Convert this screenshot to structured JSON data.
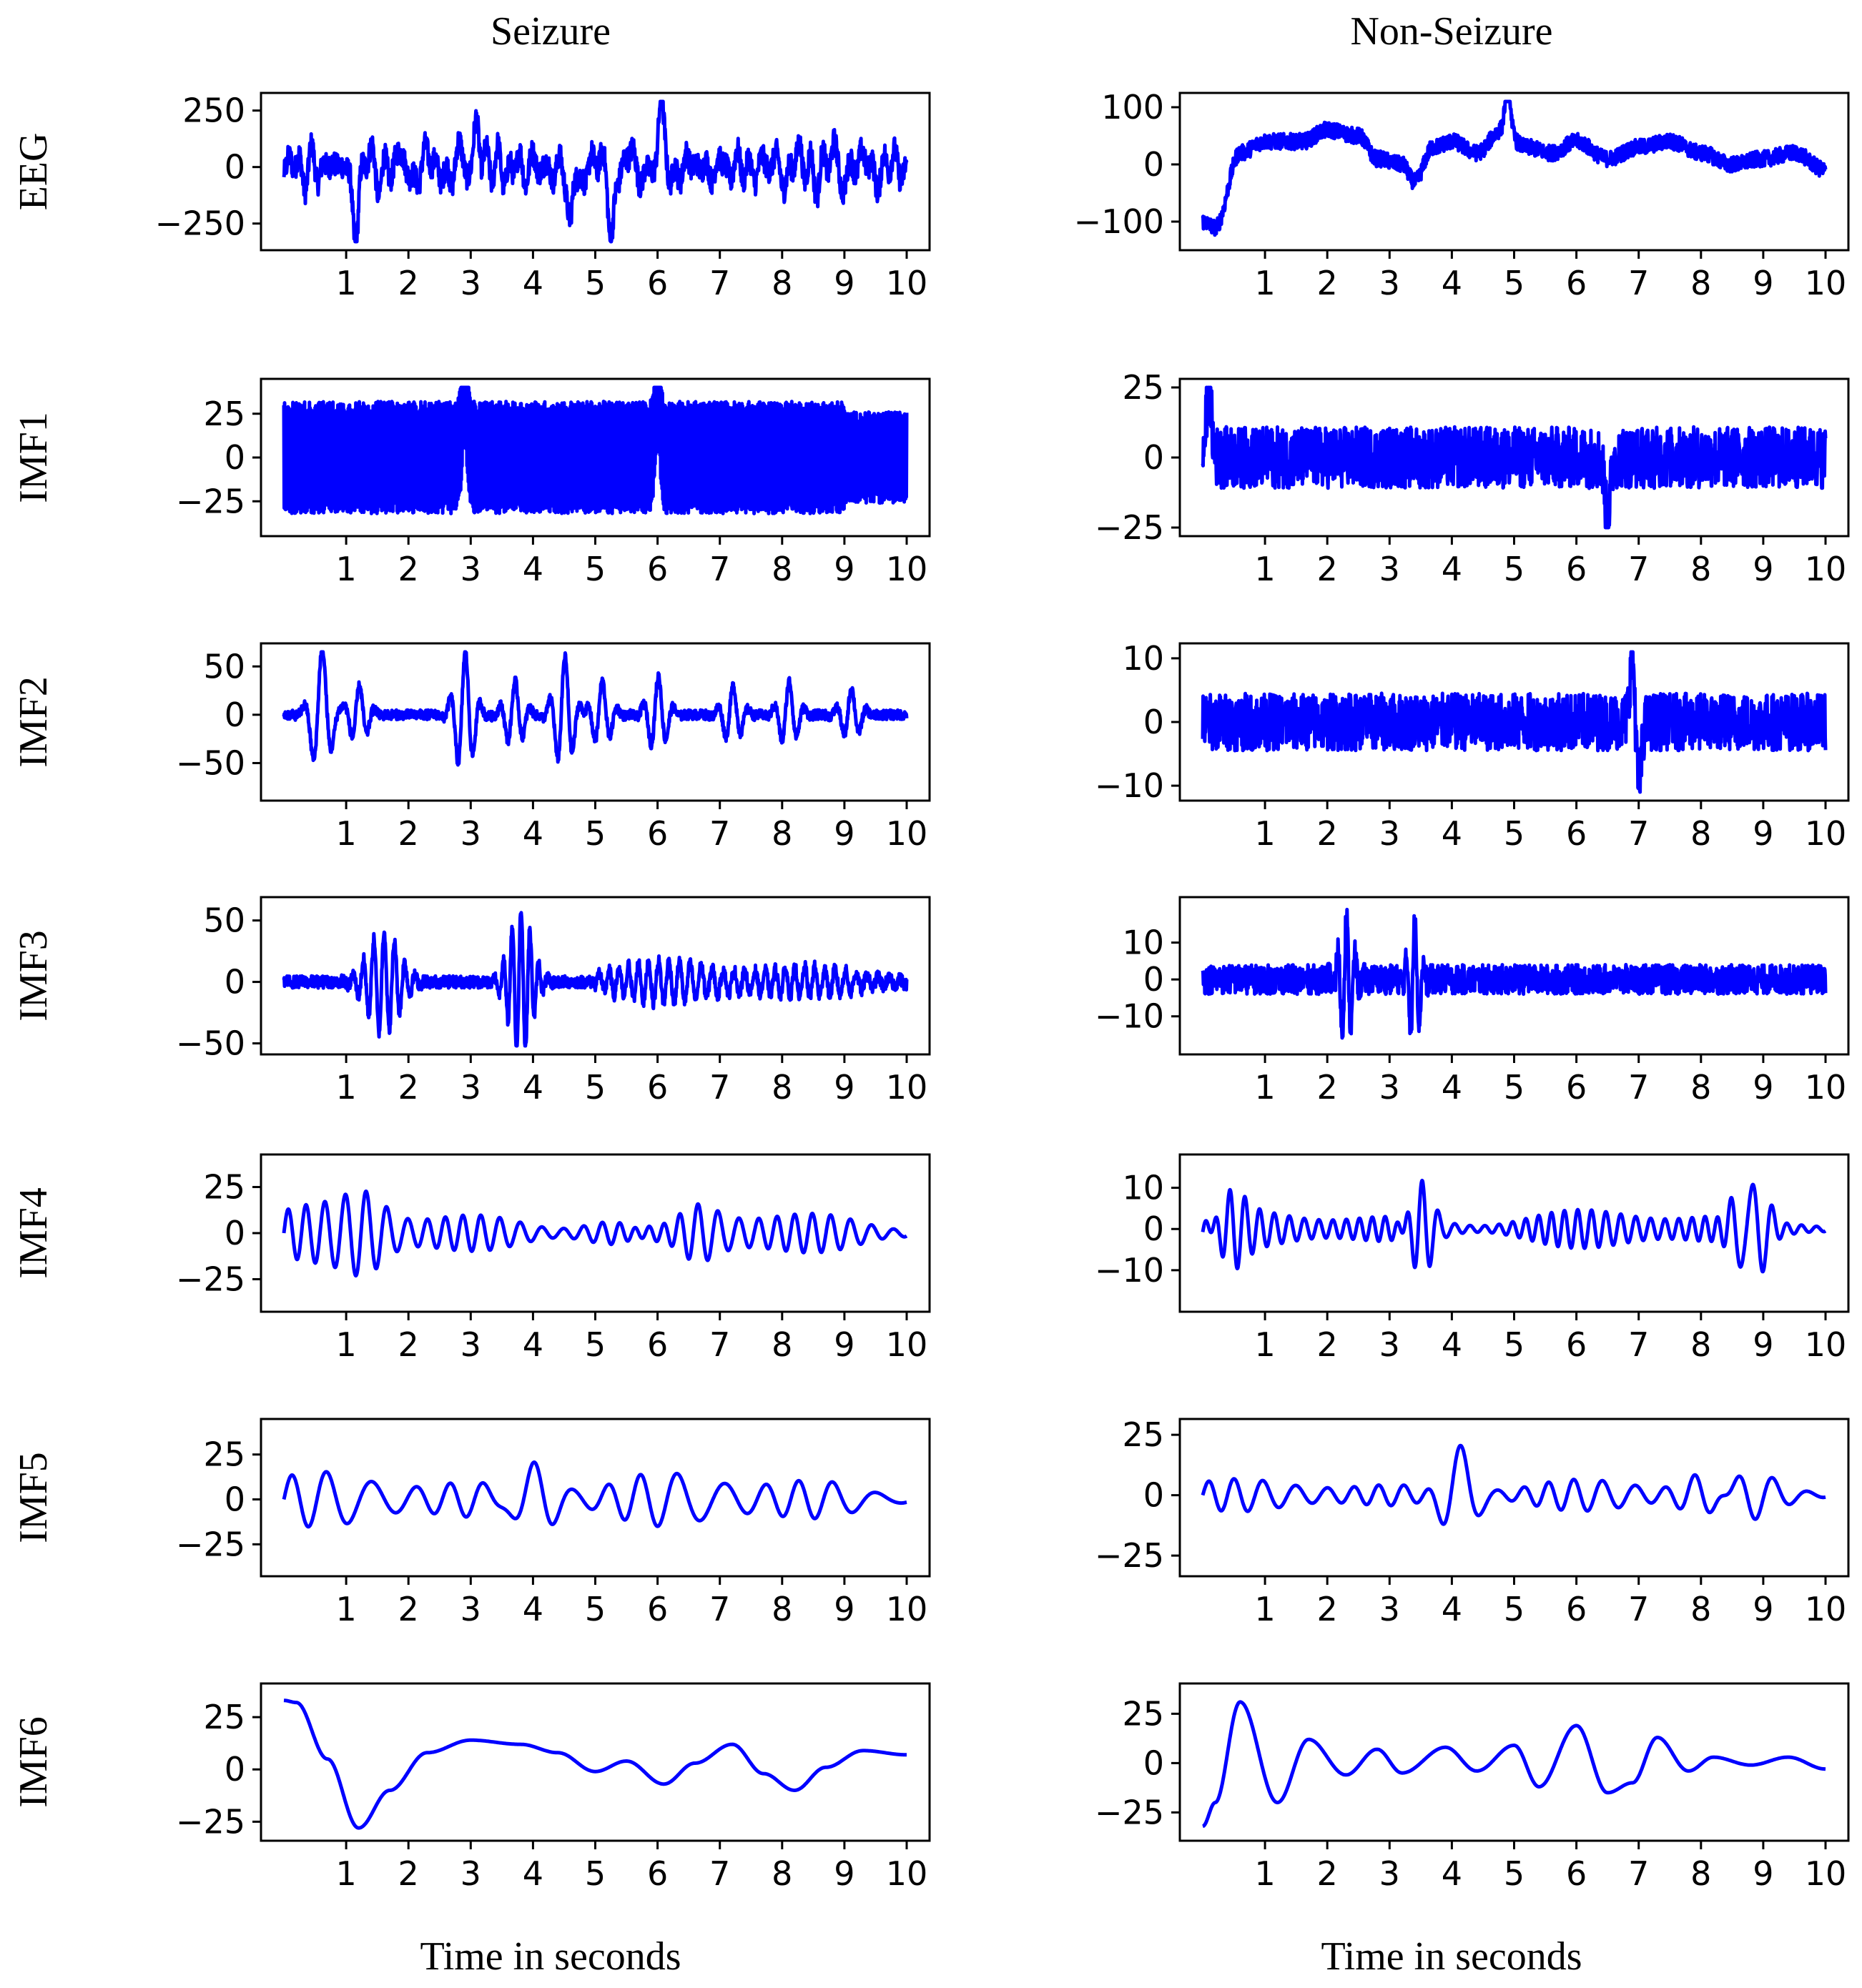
{
  "columns": [
    {
      "id": "seizure",
      "title": "Seizure"
    },
    {
      "id": "nonseizure",
      "title": "Non-Seizure"
    }
  ],
  "row_labels": [
    "EEG",
    "IMF1",
    "IMF2",
    "IMF3",
    "IMF4",
    "IMF5",
    "IMF6"
  ],
  "xlabel": "Time in seconds",
  "colors": {
    "trace": "#0000ff"
  },
  "chart_data": [
    {
      "type": "line",
      "column": "seizure",
      "row": "EEG",
      "x_ticks": [
        1,
        2,
        3,
        4,
        5,
        6,
        7,
        8,
        9,
        10
      ],
      "y_ticks": [
        -250,
        0,
        250
      ],
      "ylim": [
        -330,
        290
      ],
      "series": [
        {
          "values": {
            "kind": "signal",
            "t_end": 10,
            "features": [
              {
                "type": "wideband",
                "amp": 100,
                "freq_range": [
                  1,
                  6
                ]
              },
              {
                "type": "noise",
                "amp": 55
              },
              {
                "type": "spike",
                "t": 1.15,
                "amp": -320
              },
              {
                "type": "spike",
                "t": 3.1,
                "amp": 240
              },
              {
                "type": "spike",
                "t": 4.6,
                "amp": -320
              },
              {
                "type": "spike",
                "t": 6.05,
                "amp": 230
              },
              {
                "type": "spike",
                "t": 5.25,
                "amp": -290
              }
            ]
          }
        }
      ]
    },
    {
      "type": "line",
      "column": "nonseizure",
      "row": "EEG",
      "x_ticks": [
        1,
        2,
        3,
        4,
        5,
        6,
        7,
        8,
        9,
        10
      ],
      "y_ticks": [
        -100,
        0,
        100
      ],
      "ylim": [
        -135,
        110
      ],
      "series": [
        {
          "values": {
            "kind": "signal",
            "t_end": 10,
            "features": [
              {
                "type": "baseline",
                "points": [
                  [
                    0,
                    -100
                  ],
                  [
                    0.2,
                    -110
                  ],
                  [
                    0.6,
                    20
                  ],
                  [
                    1,
                    40
                  ],
                  [
                    1.6,
                    40
                  ],
                  [
                    2,
                    60
                  ],
                  [
                    2.5,
                    50
                  ],
                  [
                    2.8,
                    10
                  ],
                  [
                    3.2,
                    0
                  ],
                  [
                    3.4,
                    -30
                  ],
                  [
                    3.7,
                    30
                  ],
                  [
                    4,
                    40
                  ],
                  [
                    4.4,
                    20
                  ],
                  [
                    4.8,
                    60
                  ],
                  [
                    5.2,
                    30
                  ],
                  [
                    5.6,
                    20
                  ],
                  [
                    6,
                    40
                  ],
                  [
                    6.5,
                    10
                  ],
                  [
                    7,
                    30
                  ],
                  [
                    7.5,
                    40
                  ],
                  [
                    8,
                    20
                  ],
                  [
                    8.5,
                    0
                  ],
                  [
                    9,
                    10
                  ],
                  [
                    9.5,
                    20
                  ],
                  [
                    10,
                    -10
                  ]
                ]
              },
              {
                "type": "noise",
                "amp": 14
              },
              {
                "type": "spike",
                "t": 4.9,
                "amp": 90
              }
            ]
          }
        }
      ]
    },
    {
      "type": "line",
      "column": "seizure",
      "row": "IMF1",
      "x_ticks": [
        1,
        2,
        3,
        4,
        5,
        6,
        7,
        8,
        9,
        10
      ],
      "y_ticks": [
        -25,
        0,
        25
      ],
      "ylim": [
        -40,
        40
      ],
      "series": [
        {
          "values": {
            "kind": "signal",
            "t_end": 10,
            "features": [
              {
                "type": "dense",
                "amp": 32,
                "until": 9.0,
                "amp_after": 26
              },
              {
                "type": "spike",
                "t": 2.9,
                "amp": 38
              },
              {
                "type": "spike",
                "t": 6.0,
                "amp": 39
              }
            ]
          }
        }
      ]
    },
    {
      "type": "line",
      "column": "nonseizure",
      "row": "IMF1",
      "x_ticks": [
        1,
        2,
        3,
        4,
        5,
        6,
        7,
        8,
        9,
        10
      ],
      "y_ticks": [
        -25,
        0,
        25
      ],
      "ylim": [
        -25,
        25
      ],
      "series": [
        {
          "values": {
            "kind": "signal",
            "t_end": 10,
            "features": [
              {
                "type": "noise",
                "amp": 11
              },
              {
                "type": "spike",
                "t": 0.1,
                "amp": 23
              },
              {
                "type": "spike",
                "t": 6.5,
                "amp": -22
              }
            ]
          }
        }
      ]
    },
    {
      "type": "line",
      "column": "seizure",
      "row": "IMF2",
      "x_ticks": [
        1,
        2,
        3,
        4,
        5,
        6,
        7,
        8,
        9,
        10
      ],
      "y_ticks": [
        -50,
        0,
        50
      ],
      "ylim": [
        -80,
        65
      ],
      "series": [
        {
          "values": {
            "kind": "signal",
            "t_end": 10,
            "features": [
              {
                "type": "noise",
                "amp": 5
              },
              {
                "type": "burst",
                "t": 0.6,
                "amp": 70,
                "freq": 3.2
              },
              {
                "type": "burst",
                "t": 1.2,
                "amp": 30,
                "freq": 4
              },
              {
                "type": "burst",
                "t": 2.9,
                "amp": 65,
                "freq": 4
              },
              {
                "type": "burst",
                "t": 3.7,
                "amp": 35,
                "freq": 4
              },
              {
                "type": "burst",
                "t": 4.5,
                "amp": 60,
                "freq": 4
              },
              {
                "type": "burst",
                "t": 5.1,
                "amp": 35,
                "freq": 4
              },
              {
                "type": "burst",
                "t": 6.0,
                "amp": 40,
                "freq": 4
              },
              {
                "type": "burst",
                "t": 7.2,
                "amp": 30,
                "freq": 4
              },
              {
                "type": "burst",
                "t": 8.1,
                "amp": 35,
                "freq": 4
              },
              {
                "type": "burst",
                "t": 9.1,
                "amp": 28,
                "freq": 4
              }
            ]
          }
        }
      ]
    },
    {
      "type": "line",
      "column": "nonseizure",
      "row": "IMF2",
      "x_ticks": [
        1,
        2,
        3,
        4,
        5,
        6,
        7,
        8,
        9,
        10
      ],
      "y_ticks": [
        -10,
        0,
        10
      ],
      "ylim": [
        -11,
        11
      ],
      "series": [
        {
          "values": {
            "kind": "signal",
            "t_end": 10,
            "features": [
              {
                "type": "noise",
                "amp": 4.5
              },
              {
                "type": "spike",
                "t": 6.9,
                "amp": 10.5
              },
              {
                "type": "spike",
                "t": 7.0,
                "amp": -10.5
              }
            ]
          }
        }
      ]
    },
    {
      "type": "line",
      "column": "seizure",
      "row": "IMF3",
      "x_ticks": [
        1,
        2,
        3,
        4,
        5,
        6,
        7,
        8,
        9,
        10
      ],
      "y_ticks": [
        -50,
        0,
        50
      ],
      "ylim": [
        -52,
        62
      ],
      "series": [
        {
          "values": {
            "kind": "signal",
            "t_end": 10,
            "features": [
              {
                "type": "noise",
                "amp": 5
              },
              {
                "type": "burst",
                "t": 1.6,
                "amp": 42,
                "freq": 6,
                "width": 0.35
              },
              {
                "type": "burst",
                "t": 3.8,
                "amp": 60,
                "freq": 7,
                "width": 0.25
              },
              {
                "type": "osc",
                "from": 5.0,
                "to": 10,
                "amp": 18,
                "freq": 6
              }
            ]
          }
        }
      ]
    },
    {
      "type": "line",
      "column": "nonseizure",
      "row": "IMF3",
      "x_ticks": [
        1,
        2,
        3,
        4,
        5,
        6,
        7,
        8,
        9,
        10
      ],
      "y_ticks": [
        -10,
        0,
        10
      ],
      "ylim": [
        -18,
        20
      ],
      "series": [
        {
          "values": {
            "kind": "signal",
            "t_end": 10,
            "features": [
              {
                "type": "noise",
                "amp": 4
              },
              {
                "type": "burst",
                "t": 2.3,
                "amp": 17,
                "freq": 7,
                "width": 0.15
              },
              {
                "type": "burst",
                "t": 3.4,
                "amp": 17,
                "freq": 7,
                "width": 0.12
              }
            ]
          }
        }
      ]
    },
    {
      "type": "line",
      "column": "seizure",
      "row": "IMF4",
      "x_ticks": [
        1,
        2,
        3,
        4,
        5,
        6,
        7,
        8,
        9,
        10
      ],
      "y_ticks": [
        -25,
        0,
        25
      ],
      "ylim": [
        -38,
        38
      ],
      "series": [
        {
          "values": {
            "kind": "signal",
            "t_end": 10,
            "features": [
              {
                "type": "osc",
                "from": 0,
                "to": 10,
                "amp": 16,
                "freq": 3.2
              },
              {
                "type": "burst",
                "t": 1.3,
                "amp": 12,
                "freq": 3.2,
                "width": 0.5
              },
              {
                "type": "burst",
                "t": 6.1,
                "amp": 20,
                "freq": 3.5,
                "width": 0.6
              }
            ]
          }
        }
      ]
    },
    {
      "type": "line",
      "column": "nonseizure",
      "row": "IMF4",
      "x_ticks": [
        1,
        2,
        3,
        4,
        5,
        6,
        7,
        8,
        9,
        10
      ],
      "y_ticks": [
        -10,
        0,
        10
      ],
      "ylim": [
        -18,
        16
      ],
      "series": [
        {
          "values": {
            "kind": "signal",
            "t_end": 10,
            "features": [
              {
                "type": "osc",
                "from": 0,
                "to": 10,
                "amp": 5,
                "freq": 4.5
              },
              {
                "type": "burst",
                "t": 3.5,
                "amp": 12,
                "freq": 4,
                "width": 0.25
              },
              {
                "type": "burst",
                "t": 8.8,
                "amp": 13,
                "freq": 3,
                "width": 0.3
              },
              {
                "type": "burst",
                "t": 0.4,
                "amp": 8,
                "freq": 4,
                "width": 0.3
              }
            ]
          }
        }
      ]
    },
    {
      "type": "line",
      "column": "seizure",
      "row": "IMF5",
      "x_ticks": [
        1,
        2,
        3,
        4,
        5,
        6,
        7,
        8,
        9,
        10
      ],
      "y_ticks": [
        -25,
        0,
        25
      ],
      "ylim": [
        -38,
        40
      ],
      "series": [
        {
          "values": {
            "kind": "signal",
            "t_end": 10,
            "features": [
              {
                "type": "osc",
                "from": 0,
                "to": 10,
                "amp": 16,
                "freq": 1.6
              },
              {
                "type": "burst",
                "t": 4.0,
                "amp": 20,
                "freq": 1.6,
                "width": 0.45
              }
            ]
          }
        }
      ]
    },
    {
      "type": "line",
      "column": "nonseizure",
      "row": "IMF5",
      "x_ticks": [
        1,
        2,
        3,
        4,
        5,
        6,
        7,
        8,
        9,
        10
      ],
      "y_ticks": [
        -25,
        0,
        25
      ],
      "ylim": [
        -30,
        28
      ],
      "series": [
        {
          "values": {
            "kind": "signal",
            "t_end": 10,
            "features": [
              {
                "type": "osc",
                "from": 0,
                "to": 10,
                "amp": 7,
                "freq": 2.2
              },
              {
                "type": "burst",
                "t": 4.1,
                "amp": 20,
                "freq": 1.5,
                "width": 0.35
              },
              {
                "type": "burst",
                "t": 8.5,
                "amp": 8,
                "freq": 1.6,
                "width": 0.8
              }
            ]
          }
        }
      ]
    },
    {
      "type": "line",
      "column": "seizure",
      "row": "IMF6",
      "x_ticks": [
        1,
        2,
        3,
        4,
        5,
        6,
        7,
        8,
        9,
        10
      ],
      "y_ticks": [
        -25,
        0,
        25
      ],
      "ylim": [
        -30,
        37
      ],
      "series": [
        {
          "values": {
            "kind": "points",
            "t": [
              0,
              0.2,
              0.7,
              1.2,
              1.7,
              2.3,
              3.0,
              3.8,
              4.4,
              5.0,
              5.5,
              6.1,
              6.6,
              7.2,
              7.7,
              8.2,
              8.7,
              9.3,
              10.0
            ],
            "y": [
              33,
              32,
              5,
              -28,
              -10,
              8,
              14,
              12,
              8,
              -1,
              4,
              -7,
              3,
              12,
              -2,
              -10,
              1,
              9,
              7
            ]
          }
        }
      ]
    },
    {
      "type": "line",
      "column": "nonseizure",
      "row": "IMF6",
      "x_ticks": [
        1,
        2,
        3,
        4,
        5,
        6,
        7,
        8,
        9,
        10
      ],
      "y_ticks": [
        -25,
        0,
        25
      ],
      "ylim": [
        -35,
        36
      ],
      "series": [
        {
          "values": {
            "kind": "points",
            "t": [
              0,
              0.2,
              0.6,
              1.2,
              1.7,
              2.3,
              2.8,
              3.2,
              3.9,
              4.4,
              5.0,
              5.4,
              6.0,
              6.5,
              6.9,
              7.3,
              7.8,
              8.2,
              8.8,
              9.4,
              10.0
            ],
            "y": [
              -32,
              -20,
              31,
              -20,
              12,
              -6,
              7,
              -5,
              8,
              -4,
              9,
              -12,
              19,
              -15,
              -10,
              13,
              -4,
              3,
              -1,
              3,
              -3
            ]
          }
        }
      ]
    }
  ]
}
